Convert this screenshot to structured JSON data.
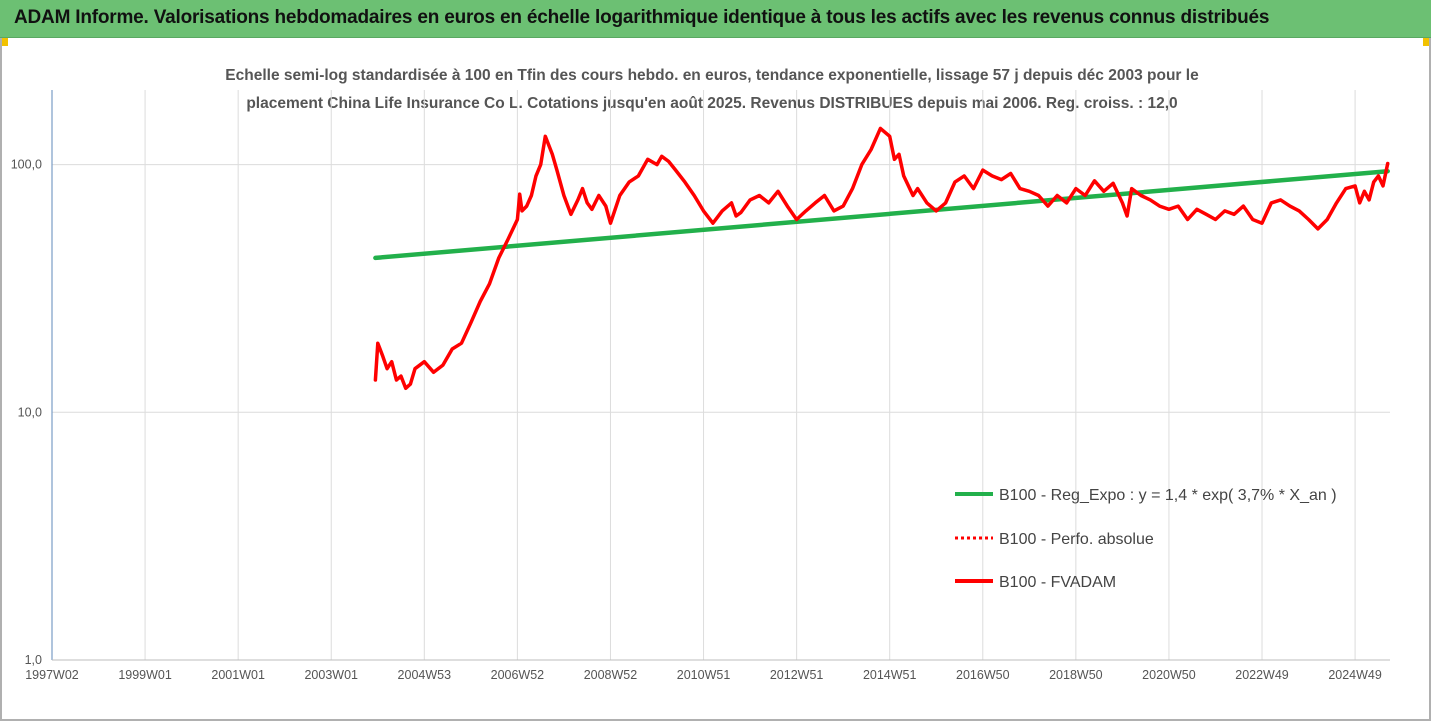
{
  "header": {
    "title": "ADAM Informe. Valorisations hebdomadaires en euros en échelle logarithmique identique à tous les actifs avec les revenus connus distribués",
    "background": "#6cc073",
    "corner_color": "#f2c200"
  },
  "chart_data": {
    "type": "line",
    "title_line1": "Echelle semi-log standardisée à 100 en Tfin des cours hebdo. en euros, tendance exponentielle, lissage 57 j depuis déc 2003 pour le",
    "title_line2": "placement China Life Insurance Co L. Cotations jusqu'en août 2025.  Revenus DISTRIBUES depuis mai 2006. Reg. croiss. : 12,0",
    "y_scale": "log",
    "ylim": [
      1,
      200
    ],
    "y_ticks": [
      {
        "value": 1,
        "label": "1,0"
      },
      {
        "value": 10,
        "label": "10,0"
      },
      {
        "value": 100,
        "label": "100,0"
      }
    ],
    "xlim": [
      1997.0,
      2025.75
    ],
    "x_ticks": [
      {
        "value": 1997.0,
        "label": "1997W02"
      },
      {
        "value": 1999.0,
        "label": "1999W01"
      },
      {
        "value": 2001.0,
        "label": "2001W01"
      },
      {
        "value": 2003.0,
        "label": "2003W01"
      },
      {
        "value": 2005.0,
        "label": "2004W53"
      },
      {
        "value": 2007.0,
        "label": "2006W52"
      },
      {
        "value": 2009.0,
        "label": "2008W52"
      },
      {
        "value": 2011.0,
        "label": "2010W51"
      },
      {
        "value": 2013.0,
        "label": "2012W51"
      },
      {
        "value": 2015.0,
        "label": "2014W51"
      },
      {
        "value": 2017.0,
        "label": "2016W50"
      },
      {
        "value": 2019.0,
        "label": "2018W50"
      },
      {
        "value": 2021.0,
        "label": "2020W50"
      },
      {
        "value": 2023.0,
        "label": "2022W49"
      },
      {
        "value": 2025.0,
        "label": "2024W49"
      }
    ],
    "grid": "vertical",
    "legend_position": "right-middle",
    "series": [
      {
        "name": "B100 - Reg_Expo : y = 1,4 * exp( 3,7% *  X_an )",
        "color": "#22b04b",
        "style": "solid",
        "x": [
          2003.95,
          2025.7
        ],
        "y": [
          42,
          94
        ]
      },
      {
        "name": "B100 - Perfo. absolue",
        "color": "#ff0000",
        "style": "dotted",
        "x": [],
        "y": []
      },
      {
        "name": "B100 - FVADAM",
        "color": "#ff0000",
        "style": "solid",
        "x": [
          2003.95,
          2004.0,
          2004.1,
          2004.2,
          2004.3,
          2004.4,
          2004.5,
          2004.6,
          2004.7,
          2004.8,
          2005.0,
          2005.2,
          2005.4,
          2005.6,
          2005.8,
          2006.0,
          2006.2,
          2006.4,
          2006.6,
          2006.8,
          2007.0,
          2007.05,
          2007.1,
          2007.2,
          2007.3,
          2007.4,
          2007.5,
          2007.6,
          2007.75,
          2007.85,
          2008.0,
          2008.15,
          2008.3,
          2008.4,
          2008.5,
          2008.6,
          2008.75,
          2008.9,
          2009.0,
          2009.2,
          2009.4,
          2009.6,
          2009.8,
          2010.0,
          2010.1,
          2010.25,
          2010.4,
          2010.6,
          2010.8,
          2011.0,
          2011.2,
          2011.4,
          2011.6,
          2011.7,
          2011.8,
          2012.0,
          2012.2,
          2012.4,
          2012.6,
          2012.8,
          2013.0,
          2013.2,
          2013.4,
          2013.6,
          2013.8,
          2014.0,
          2014.2,
          2014.4,
          2014.6,
          2014.8,
          2015.0,
          2015.1,
          2015.2,
          2015.3,
          2015.5,
          2015.6,
          2015.8,
          2016.0,
          2016.2,
          2016.4,
          2016.6,
          2016.8,
          2017.0,
          2017.2,
          2017.4,
          2017.6,
          2017.8,
          2018.0,
          2018.2,
          2018.4,
          2018.6,
          2018.8,
          2019.0,
          2019.2,
          2019.4,
          2019.6,
          2019.8,
          2020.0,
          2020.1,
          2020.2,
          2020.4,
          2020.6,
          2020.8,
          2021.0,
          2021.2,
          2021.4,
          2021.6,
          2021.8,
          2022.0,
          2022.2,
          2022.4,
          2022.6,
          2022.8,
          2023.0,
          2023.2,
          2023.4,
          2023.6,
          2023.8,
          2024.0,
          2024.2,
          2024.4,
          2024.6,
          2024.8,
          2025.0,
          2025.1,
          2025.2,
          2025.3,
          2025.4,
          2025.5,
          2025.6,
          2025.7
        ],
        "y": [
          13.5,
          19,
          17,
          15,
          16,
          13.5,
          14,
          12.5,
          13,
          15,
          16,
          14.5,
          15.5,
          18,
          19,
          23,
          28,
          33,
          42,
          50,
          60,
          76,
          65,
          68,
          75,
          90,
          100,
          130,
          110,
          95,
          75,
          63,
          72,
          80,
          70,
          66,
          75,
          68,
          58,
          75,
          85,
          90,
          105,
          100,
          108,
          103,
          95,
          85,
          75,
          65,
          58,
          65,
          70,
          62,
          64,
          72,
          75,
          70,
          78,
          68,
          60,
          65,
          70,
          75,
          65,
          68,
          80,
          100,
          115,
          140,
          130,
          105,
          110,
          90,
          75,
          80,
          70,
          65,
          70,
          85,
          90,
          80,
          95,
          90,
          87,
          92,
          80,
          78,
          75,
          68,
          75,
          70,
          80,
          75,
          86,
          78,
          84,
          70,
          62,
          80,
          75,
          72,
          68,
          66,
          68,
          60,
          66,
          63,
          60,
          65,
          63,
          68,
          60,
          58,
          70,
          72,
          68,
          65,
          60,
          55,
          60,
          70,
          80,
          82,
          70,
          78,
          72,
          85,
          90,
          82,
          101
        ]
      }
    ]
  },
  "legend": {
    "items": [
      {
        "label": "B100 - Reg_Expo : y = 1,4 * exp( 3,7% *  X_an )",
        "color": "#22b04b",
        "style": "solid"
      },
      {
        "label": "B100 - Perfo. absolue",
        "color": "#ff0000",
        "style": "dotted"
      },
      {
        "label": "B100 - FVADAM",
        "color": "#ff0000",
        "style": "solid"
      }
    ]
  }
}
